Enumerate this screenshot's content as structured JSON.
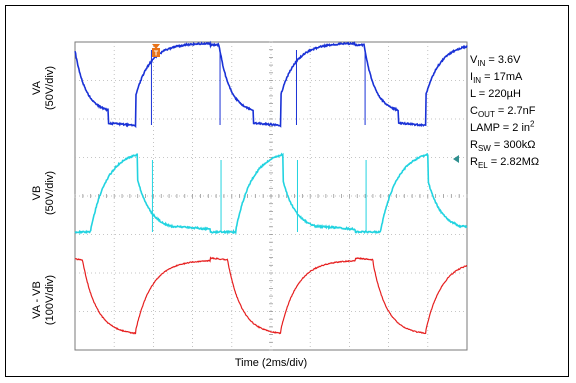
{
  "chart_data": {
    "type": "line",
    "title": "",
    "xlabel": "Time (2ms/div)",
    "x_divisions": 10,
    "channels": [
      {
        "label": "VA",
        "scale": "(50V/div)",
        "color": "#1a32d6"
      },
      {
        "label": "VB",
        "scale": "(50V/div)",
        "color": "#22d3e0"
      },
      {
        "label": "VA - VB",
        "scale": "(100V/div)",
        "color": "#e62020"
      }
    ],
    "trigger_marker": "T",
    "conditions": [
      {
        "sym": "V",
        "sub": "IN",
        "sup": "",
        "rest": " = 3.6V"
      },
      {
        "sym": "I",
        "sub": "IN",
        "sup": "",
        "rest": " = 17mA"
      },
      {
        "sym": "L",
        "sub": "",
        "sup": "",
        "rest": " = 220µH"
      },
      {
        "sym": "C",
        "sub": "OUT",
        "sup": "",
        "rest": " = 2.7nF"
      },
      {
        "sym": "LAMP = 2 in",
        "sub": "",
        "sup": "2",
        "rest": ""
      },
      {
        "sym": "R",
        "sub": "SW",
        "sup": "",
        "rest": " = 300kΩ"
      },
      {
        "sym": "R",
        "sub": "EL",
        "sup": "",
        "rest": " = 2.82MΩ"
      }
    ]
  }
}
